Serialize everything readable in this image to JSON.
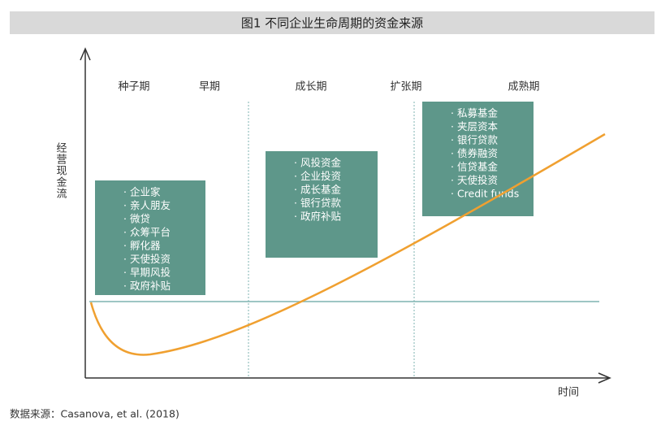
{
  "title": "图1  不同企业生命周期的资金来源",
  "y_axis_label": "经营现金流",
  "x_axis_label": "时间",
  "stages": [
    "种子期",
    "早期",
    "成长期",
    "扩张期",
    "成熟期"
  ],
  "boxes": [
    {
      "items": [
        "· 企业家",
        "· 亲人朋友",
        "· 微贷",
        "· 众筹平台",
        "· 孵化器",
        "· 天使投资",
        "· 早期风投",
        "· 政府补贴"
      ]
    },
    {
      "items": [
        "· 风投资金",
        "· 企业投资",
        "· 成长基金",
        "· 银行贷款",
        "· 政府补贴"
      ]
    },
    {
      "items": [
        "· 私募基金",
        "· 夹层资本",
        "· 银行贷款",
        "· 债券融资",
        "· 信贷基金",
        "· 天使投资",
        "· Credit funds"
      ]
    }
  ],
  "source": "数据来源：Casanova, et al. (2018)"
}
